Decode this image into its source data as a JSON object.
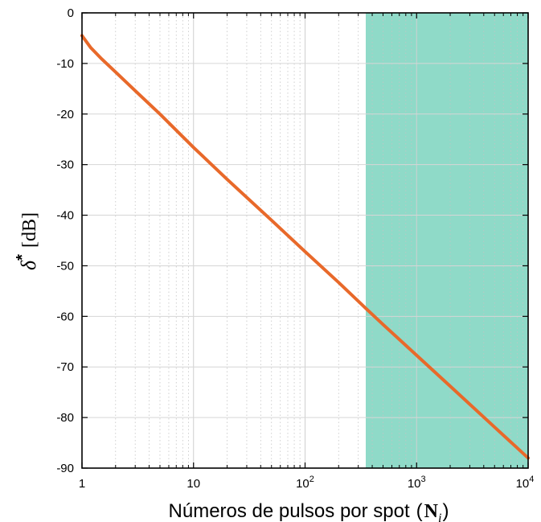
{
  "chart_data": {
    "type": "line",
    "title": "",
    "xlabel": "Números de pulsos por spot",
    "xlabel_math_open": "(",
    "xlabel_math_symbol": "N",
    "xlabel_math_sub": "i",
    "xlabel_math_close": ")",
    "ylabel_symbol": "δ",
    "ylabel_star": "*",
    "ylabel_unit": "[dB]",
    "x_scale": "log",
    "xlim": [
      1,
      10000
    ],
    "ylim": [
      -90,
      0
    ],
    "x_ticks": [
      {
        "value": 1,
        "label": "1"
      },
      {
        "value": 10,
        "label": "10"
      },
      {
        "value": 100,
        "label": "10",
        "sup": "2"
      },
      {
        "value": 1000,
        "label": "10",
        "sup": "3"
      },
      {
        "value": 10000,
        "label": "10",
        "sup": "4"
      }
    ],
    "y_ticks": [
      {
        "value": 0,
        "label": "0"
      },
      {
        "value": -10,
        "label": "-10"
      },
      {
        "value": -20,
        "label": "-20"
      },
      {
        "value": -30,
        "label": "-30"
      },
      {
        "value": -40,
        "label": "-40"
      },
      {
        "value": -50,
        "label": "-50"
      },
      {
        "value": -60,
        "label": "-60"
      },
      {
        "value": -70,
        "label": "-70"
      },
      {
        "value": -80,
        "label": "-80"
      },
      {
        "value": -90,
        "label": "-90"
      }
    ],
    "grid": true,
    "shaded_region": {
      "x_start": 350,
      "x_end": 10000,
      "color": "#8fdac8"
    },
    "series": [
      {
        "color": "#e8692a",
        "x": [
          1,
          1.2,
          1.5,
          2,
          3,
          5,
          10,
          20,
          50,
          100,
          200,
          350,
          500,
          1000,
          2000,
          5000,
          10000
        ],
        "y": [
          -4.5,
          -6.9,
          -9.1,
          -11.7,
          -15.4,
          -20.0,
          -26.6,
          -32.9,
          -41.0,
          -47.2,
          -53.3,
          -58.4,
          -61.6,
          -67.7,
          -73.8,
          -81.9,
          -88.0
        ]
      }
    ]
  }
}
